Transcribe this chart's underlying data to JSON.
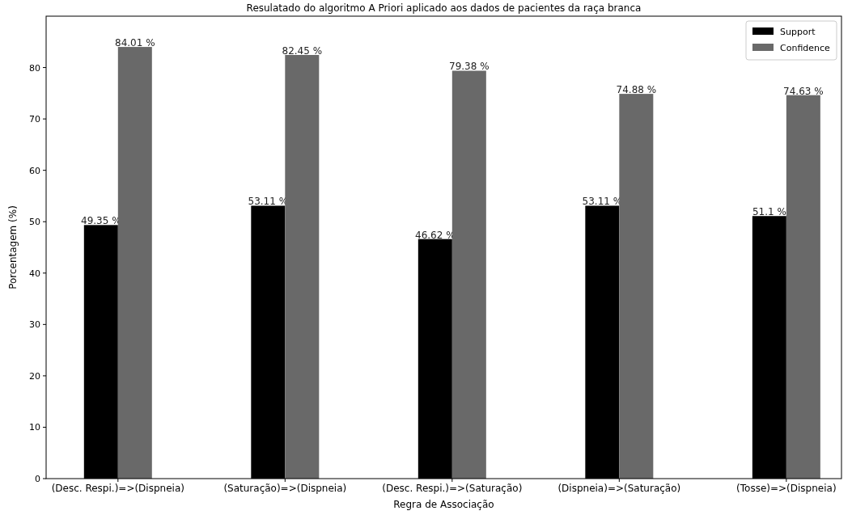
{
  "chart_data": {
    "type": "bar",
    "title": "Resulatado do algoritmo A Priori aplicado aos dados de pacientes da raça branca",
    "xlabel": "Regra de Associação",
    "ylabel": "Porcentagem (%)",
    "categories": [
      "(Desc. Respi.)=>(Dispneia)",
      "(Saturação)=>(Dispneia)",
      "(Desc. Respi.)=>(Saturação)",
      "(Dispneia)=>(Saturação)",
      "(Tosse)=>(Dispneia)"
    ],
    "series": [
      {
        "name": "Support",
        "color": "#000000",
        "values": [
          49.35,
          53.11,
          46.62,
          53.11,
          51.1
        ],
        "value_labels": [
          "49.35 %",
          "53.11 %",
          "46.62 %",
          "53.11 %",
          "51.1 %"
        ]
      },
      {
        "name": "Confidence",
        "color": "#696969",
        "values": [
          84.01,
          82.45,
          79.38,
          74.88,
          74.63
        ],
        "value_labels": [
          "84.01 %",
          "82.45 %",
          "79.38 %",
          "74.88 %",
          "74.63 %"
        ]
      }
    ],
    "ylim": [
      0,
      90
    ],
    "yticks": [
      0,
      10,
      20,
      30,
      40,
      50,
      60,
      70,
      80
    ],
    "legend": "top right",
    "grid": false
  }
}
